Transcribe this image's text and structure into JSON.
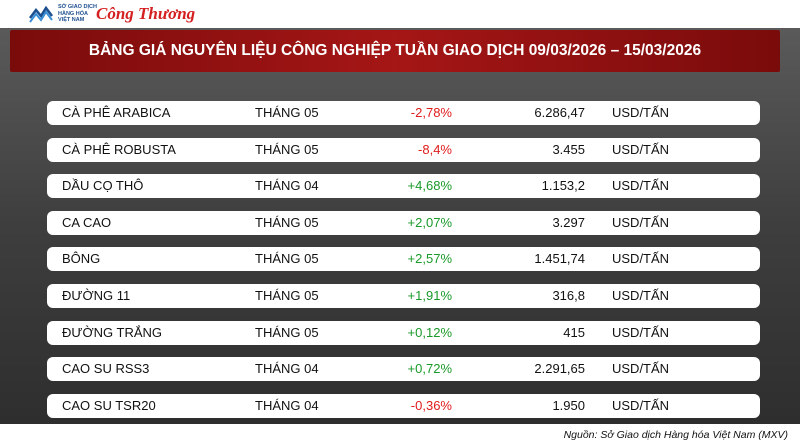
{
  "header": {
    "logo_lines": [
      "SỞ GIAO DỊCH",
      "HÀNG HÓA",
      "VIỆT NAM"
    ],
    "brand": "Công Thương"
  },
  "title": "BẢNG GIÁ NGUYÊN LIỆU CÔNG NGHIỆP TUẦN GIAO DỊCH 09/03/2026 – 15/03/2026",
  "table": {
    "rows": [
      [
        "CÀ PHÊ ARABICA",
        "THÁNG 05",
        "-2,78%",
        "6.286,47",
        "USD/TẤN"
      ],
      [
        "CÀ PHÊ ROBUSTA",
        "THÁNG 05",
        "-8,4%",
        "3.455",
        "USD/TẤN"
      ],
      [
        "DẦU CỌ THÔ",
        "THÁNG 04",
        "+4,68%",
        "1.153,2",
        "USD/TẤN"
      ],
      [
        "CA CAO",
        "THÁNG 05",
        "+2,07%",
        "3.297",
        "USD/TẤN"
      ],
      [
        "BÔNG",
        "THÁNG 05",
        "+2,57%",
        "1.451,74",
        "USD/TẤN"
      ],
      [
        "ĐƯỜNG 11",
        "THÁNG 05",
        "+1,91%",
        "316,8",
        "USD/TẤN"
      ],
      [
        "ĐƯỜNG TRẮNG",
        "THÁNG 05",
        "+0,12%",
        "415",
        "USD/TẤN"
      ],
      [
        "CAO SU RSS3",
        "THÁNG 04",
        "+0,72%",
        "2.291,65",
        "USD/TẤN"
      ],
      [
        "CAO SU TSR20",
        "THÁNG 04",
        "-0,36%",
        "1.950",
        "USD/TẤN"
      ]
    ]
  },
  "source": "Nguồn: Sở Giao dịch Hàng hóa Việt Nam (MXV)"
}
